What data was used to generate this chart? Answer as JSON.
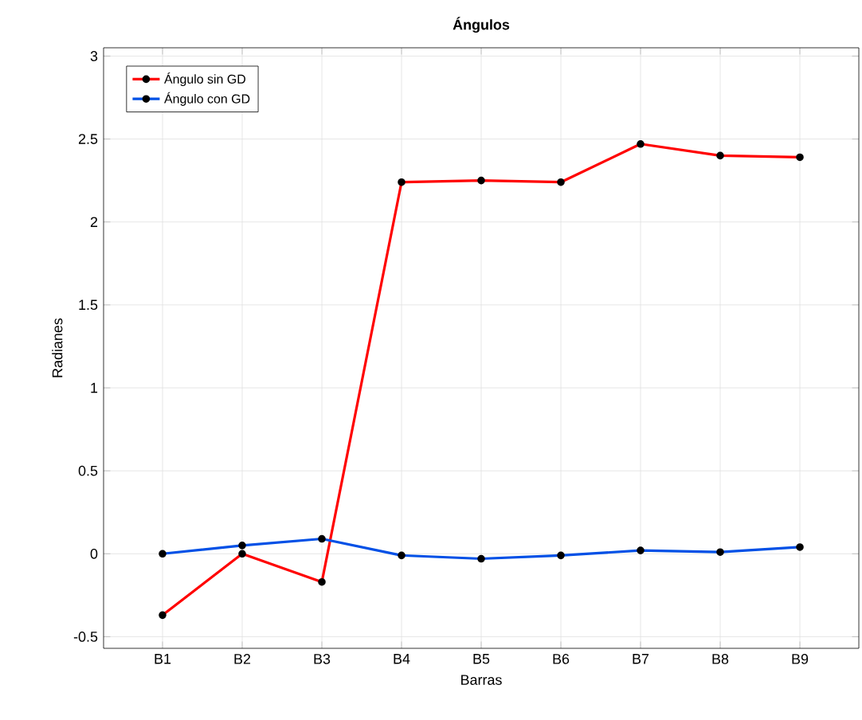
{
  "chart_data": {
    "type": "line",
    "title": "Ángulos",
    "xlabel": "Barras",
    "ylabel": "Radianes",
    "categories": [
      "B1",
      "B2",
      "B3",
      "B4",
      "B5",
      "B6",
      "B7",
      "B8",
      "B9"
    ],
    "series": [
      {
        "name": "Ángulo sin GD",
        "color": "#ff0000",
        "values": [
          -0.37,
          0.0,
          -0.17,
          2.24,
          2.25,
          2.24,
          2.47,
          2.4,
          2.39
        ]
      },
      {
        "name": "Ángulo con GD",
        "color": "#0050e6",
        "values": [
          0.0,
          0.05,
          0.09,
          -0.01,
          -0.03,
          -0.01,
          0.02,
          0.01,
          0.04
        ]
      }
    ],
    "ylim": [
      -0.57,
      3.05
    ],
    "yticks": [
      -0.5,
      0,
      0.5,
      1,
      1.5,
      2,
      2.5,
      3
    ],
    "grid": true,
    "legend": "top left",
    "marker": "circle",
    "line_style": "solid"
  }
}
